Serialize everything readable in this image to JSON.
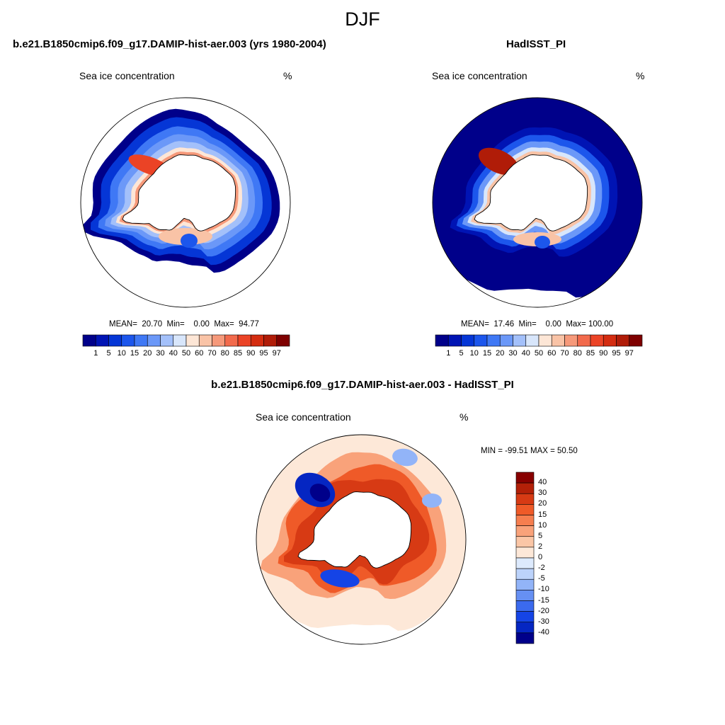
{
  "title": "DJF",
  "panels": [
    {
      "id": "model",
      "title": "b.e21.B1850cmip6.f09_g17.DAMIP-hist-aer.003 (yrs 1980-2004)",
      "variable": "Sea ice concentration",
      "units": "%",
      "stats": {
        "mean": "20.70",
        "min": "0.00",
        "max": "94.77"
      }
    },
    {
      "id": "obs",
      "title": "HadISST_PI",
      "variable": "Sea ice concentration",
      "units": "%",
      "stats": {
        "mean": "17.46",
        "min": "0.00",
        "max": "100.00"
      }
    },
    {
      "id": "diff",
      "title": "b.e21.B1850cmip6.f09_g17.DAMIP-hist-aer.003 - HadISST_PI",
      "variable": "Sea ice concentration",
      "units": "%",
      "minmax": "MIN = -99.51 MAX =  50.50"
    }
  ],
  "chart_data": [
    {
      "type": "heatmap",
      "projection": "south-polar-stereographic",
      "region": "Antarctic",
      "title": "b.e21.B1850cmip6.f09_g17.DAMIP-hist-aer.003 (yrs 1980-2004)",
      "field": "Sea ice concentration",
      "units": "%",
      "mean": 20.7,
      "min": 0.0,
      "max": 94.77,
      "colorbar_levels": [
        1,
        5,
        10,
        15,
        20,
        30,
        40,
        50,
        60,
        70,
        80,
        85,
        90,
        95,
        97
      ],
      "colorbar_colors": [
        "#00008a",
        "#0014b4",
        "#0536d6",
        "#1c56ec",
        "#3f78f5",
        "#6b98f8",
        "#a3c0fa",
        "#d8e6fb",
        "#fde6d6",
        "#f9c3a6",
        "#f6997a",
        "#f26a4c",
        "#eb4326",
        "#d42c10",
        "#b01c08",
        "#7e0000"
      ],
      "colorbar_orientation": "horizontal"
    },
    {
      "type": "heatmap",
      "projection": "south-polar-stereographic",
      "region": "Antarctic",
      "title": "HadISST_PI",
      "field": "Sea ice concentration",
      "units": "%",
      "mean": 17.46,
      "min": 0.0,
      "max": 100.0,
      "colorbar_levels": [
        1,
        5,
        10,
        15,
        20,
        30,
        40,
        50,
        60,
        70,
        80,
        85,
        90,
        95,
        97
      ],
      "colorbar_colors": [
        "#00008a",
        "#0014b4",
        "#0536d6",
        "#1c56ec",
        "#3f78f5",
        "#6b98f8",
        "#a3c0fa",
        "#d8e6fb",
        "#fde6d6",
        "#f9c3a6",
        "#f6997a",
        "#f26a4c",
        "#eb4326",
        "#d42c10",
        "#b01c08",
        "#7e0000"
      ],
      "colorbar_orientation": "horizontal"
    },
    {
      "type": "heatmap",
      "projection": "south-polar-stereographic",
      "region": "Antarctic",
      "title": "b.e21.B1850cmip6.f09_g17.DAMIP-hist-aer.003 - HadISST_PI",
      "field": "Sea ice concentration",
      "units": "%",
      "min": -99.51,
      "max": 50.5,
      "colorbar_levels": [
        40,
        30,
        20,
        15,
        10,
        5,
        2,
        0,
        -2,
        -5,
        -10,
        -15,
        -20,
        -30,
        -40
      ],
      "colorbar_colors": [
        "#880000",
        "#b32008",
        "#d73a14",
        "#ef5a28",
        "#f67e4f",
        "#f9a27a",
        "#fbc6a6",
        "#fde8d8",
        "#ddeafd",
        "#bcd3fb",
        "#92b4f8",
        "#6690f3",
        "#3b6aee",
        "#1544e6",
        "#0526c2",
        "#00008a"
      ],
      "colorbar_orientation": "vertical"
    }
  ]
}
